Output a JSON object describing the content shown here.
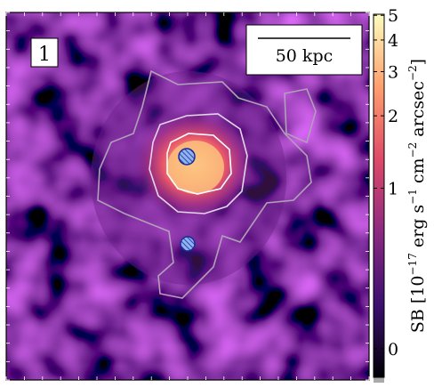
{
  "panel_label": "1",
  "scale_bar": "50 kpc",
  "colorbar": {
    "ticks": [
      0,
      1,
      2,
      3,
      4,
      5
    ],
    "lim": [
      -0.13,
      5.05
    ],
    "stretch": "asinh",
    "softening": 0.5,
    "colormap": [
      "#000004",
      "#3b0f70",
      "#8c2981",
      "#de4968",
      "#fe9f6d",
      "#fcfdbf"
    ],
    "label_parts": [
      "SB [10",
      "−17",
      " erg s",
      "−1",
      " cm",
      "−2",
      " arcsec",
      "−2",
      "]"
    ]
  }
}
